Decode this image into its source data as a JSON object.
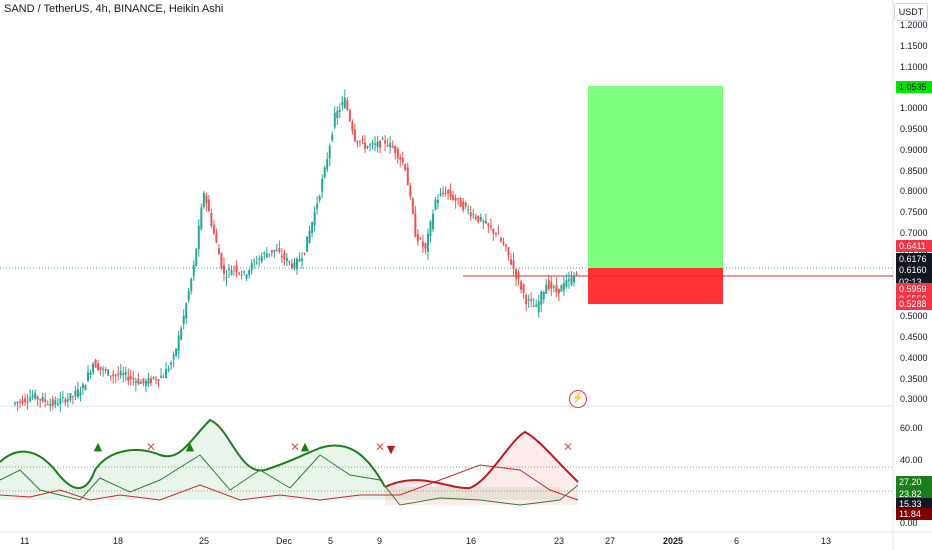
{
  "header": {
    "title": "SAND / TetherUS, 4h, BINANCE, Heikin Ashi",
    "currency": "USDT"
  },
  "price_axis": [
    "1.2000",
    "1.1500",
    "1.1000",
    "1.0500",
    "1.0000",
    "0.9500",
    "0.9000",
    "0.8500",
    "0.8000",
    "0.7500",
    "0.7000",
    "0.6500",
    "0.5500",
    "0.5000",
    "0.4500",
    "0.4000",
    "0.3500",
    "0.3000"
  ],
  "price_tags": {
    "target": "1.0535",
    "red_top": "0.6411",
    "last": "0.6176",
    "countdown_price": "0.6160",
    "countdown": "02:13",
    "entry": "0.5959",
    "mid": "0.5550",
    "stop": "0.5288"
  },
  "osc_axis": [
    "60.00",
    "40.00",
    "0.00"
  ],
  "osc_tags": [
    "27.20",
    "23.82",
    "15.33",
    "11.84"
  ],
  "time_axis": [
    {
      "label": "11",
      "bold": false
    },
    {
      "label": "18",
      "bold": false
    },
    {
      "label": "25",
      "bold": false
    },
    {
      "label": "Dec",
      "bold": false
    },
    {
      "label": "5",
      "bold": false
    },
    {
      "label": "9",
      "bold": false
    },
    {
      "label": "16",
      "bold": false
    },
    {
      "label": "23",
      "bold": false
    },
    {
      "label": "27",
      "bold": false
    },
    {
      "label": "2025",
      "bold": true
    },
    {
      "label": "6",
      "bold": false
    },
    {
      "label": "13",
      "bold": false
    }
  ],
  "colors": {
    "up": "#26a69a",
    "down": "#ef5350",
    "profit_zone": "#7dff7d",
    "loss_zone": "#ff3333",
    "osc_green": "#1b7d1b",
    "osc_red": "#b71c1c"
  },
  "chart_data": {
    "type": "line",
    "series": [
      {
        "values": [
          0.29,
          0.3,
          0.31,
          0.3,
          0.29,
          0.3,
          0.31,
          0.33,
          0.39,
          0.37,
          0.36,
          0.36,
          0.35,
          0.34,
          0.35,
          0.36,
          0.4,
          0.5,
          0.62,
          0.8,
          0.7,
          0.6,
          0.62,
          0.6,
          0.63,
          0.65,
          0.66,
          0.64,
          0.62,
          0.66,
          0.75,
          0.85,
          0.98,
          1.02,
          0.93,
          0.91,
          0.91,
          0.92,
          0.9,
          0.86,
          0.7,
          0.66,
          0.78,
          0.8,
          0.78,
          0.76,
          0.74,
          0.72,
          0.7,
          0.66,
          0.6,
          0.54,
          0.52,
          0.58,
          0.56,
          0.58,
          0.6
        ]
      }
    ],
    "ylim": [
      0.28,
      1.22
    ]
  }
}
